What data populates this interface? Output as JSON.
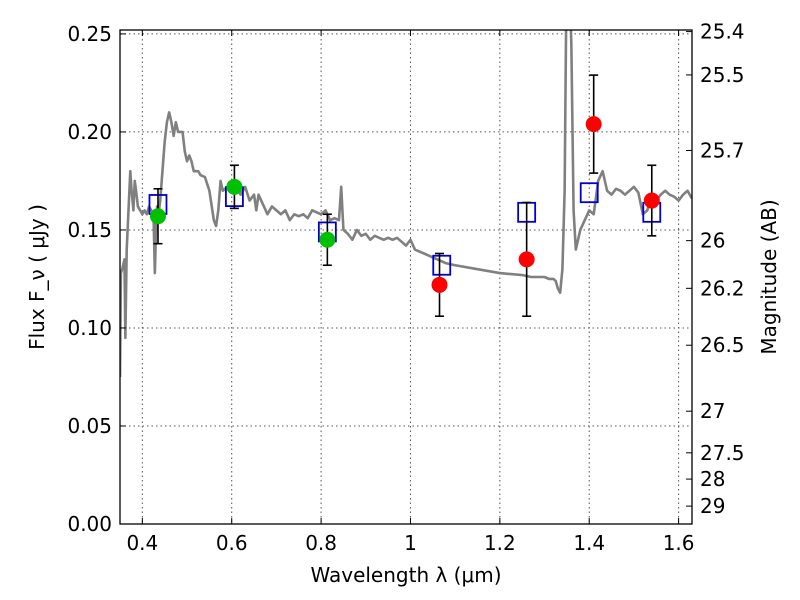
{
  "chart_data": {
    "type": "scatter",
    "title": "",
    "xlabel": "Wavelength λ (μm)",
    "ylabel": "Flux F_ν ( μJy )",
    "ylabel_right": "Magnitude (AB)",
    "xlim": [
      0.35,
      1.63
    ],
    "ylim": [
      0,
      0.252
    ],
    "grid": true,
    "x_ticks": [
      0.4,
      0.6,
      0.8,
      1.0,
      1.2,
      1.4,
      1.6
    ],
    "x_tick_labels": [
      "0.4",
      "0.6",
      "0.8",
      "1",
      "1.2",
      "1.4",
      "1.6"
    ],
    "y_ticks": [
      0.0,
      0.05,
      0.1,
      0.15,
      0.2,
      0.25
    ],
    "y_tick_labels": [
      "0.00",
      "0.05",
      "0.10",
      "0.15",
      "0.20",
      "0.25"
    ],
    "right_ticks": [
      {
        "mag": 25.4,
        "label": "25.4"
      },
      {
        "mag": 25.5,
        "label": "25.5"
      },
      {
        "mag": 25.7,
        "label": "25.7"
      },
      {
        "mag": 26.0,
        "label": "26"
      },
      {
        "mag": 26.2,
        "label": "26.2"
      },
      {
        "mag": 26.5,
        "label": "26.5"
      },
      {
        "mag": 27.0,
        "label": "27"
      },
      {
        "mag": 27.5,
        "label": "27.5"
      },
      {
        "mag": 28.0,
        "label": "28"
      },
      {
        "mag": 29.0,
        "label": "29"
      }
    ],
    "series": [
      {
        "kind": "model_spectrum",
        "style": "line",
        "color": "#808080",
        "x": [
          0.35,
          0.352,
          0.355,
          0.36,
          0.362,
          0.365,
          0.37,
          0.373,
          0.376,
          0.38,
          0.383,
          0.386,
          0.39,
          0.395,
          0.4,
          0.405,
          0.41,
          0.415,
          0.42,
          0.425,
          0.428,
          0.43,
          0.433,
          0.436,
          0.44,
          0.445,
          0.45,
          0.455,
          0.46,
          0.465,
          0.47,
          0.475,
          0.48,
          0.485,
          0.49,
          0.495,
          0.5,
          0.505,
          0.51,
          0.515,
          0.52,
          0.525,
          0.53,
          0.54,
          0.55,
          0.56,
          0.565,
          0.57,
          0.575,
          0.58,
          0.59,
          0.6,
          0.61,
          0.62,
          0.63,
          0.64,
          0.65,
          0.655,
          0.66,
          0.67,
          0.68,
          0.69,
          0.7,
          0.71,
          0.72,
          0.73,
          0.74,
          0.75,
          0.76,
          0.77,
          0.78,
          0.79,
          0.8,
          0.81,
          0.82,
          0.83,
          0.84,
          0.845,
          0.85,
          0.86,
          0.87,
          0.88,
          0.89,
          0.9,
          0.91,
          0.92,
          0.93,
          0.94,
          0.95,
          0.96,
          0.97,
          0.98,
          0.99,
          1.0,
          1.01,
          1.02,
          1.03,
          1.05,
          1.08,
          1.1,
          1.15,
          1.2,
          1.25,
          1.27,
          1.3,
          1.31,
          1.32,
          1.325,
          1.33,
          1.335,
          1.34,
          1.345,
          1.35,
          1.355,
          1.36,
          1.365,
          1.37,
          1.38,
          1.39,
          1.4,
          1.41,
          1.42,
          1.43,
          1.44,
          1.45,
          1.46,
          1.47,
          1.48,
          1.49,
          1.5,
          1.51,
          1.52,
          1.53,
          1.54,
          1.55,
          1.56,
          1.57,
          1.58,
          1.59,
          1.6,
          1.61,
          1.62,
          1.63
        ],
        "y": [
          0.075,
          0.128,
          0.13,
          0.135,
          0.095,
          0.14,
          0.165,
          0.18,
          0.17,
          0.16,
          0.175,
          0.17,
          0.162,
          0.16,
          0.158,
          0.16,
          0.158,
          0.162,
          0.16,
          0.158,
          0.128,
          0.145,
          0.162,
          0.158,
          0.165,
          0.18,
          0.195,
          0.205,
          0.21,
          0.205,
          0.198,
          0.205,
          0.2,
          0.2,
          0.2,
          0.19,
          0.185,
          0.188,
          0.185,
          0.18,
          0.18,
          0.18,
          0.178,
          0.177,
          0.17,
          0.155,
          0.152,
          0.16,
          0.175,
          0.17,
          0.172,
          0.17,
          0.172,
          0.168,
          0.172,
          0.165,
          0.168,
          0.16,
          0.168,
          0.163,
          0.158,
          0.162,
          0.16,
          0.158,
          0.16,
          0.155,
          0.158,
          0.157,
          0.158,
          0.156,
          0.16,
          0.159,
          0.158,
          0.16,
          0.155,
          0.156,
          0.155,
          0.172,
          0.15,
          0.148,
          0.145,
          0.15,
          0.147,
          0.148,
          0.145,
          0.147,
          0.146,
          0.145,
          0.146,
          0.145,
          0.146,
          0.144,
          0.142,
          0.145,
          0.14,
          0.139,
          0.138,
          0.136,
          0.133,
          0.132,
          0.13,
          0.128,
          0.127,
          0.126,
          0.126,
          0.125,
          0.125,
          0.124,
          0.12,
          0.118,
          0.13,
          0.17,
          0.3,
          0.28,
          0.245,
          0.16,
          0.14,
          0.15,
          0.155,
          0.16,
          0.158,
          0.175,
          0.18,
          0.17,
          0.168,
          0.171,
          0.17,
          0.168,
          0.17,
          0.172,
          0.169,
          0.158,
          0.16,
          0.168,
          0.165,
          0.168,
          0.17,
          0.168,
          0.167,
          0.165,
          0.168,
          0.17,
          0.166
        ]
      },
      {
        "kind": "model_photometry",
        "style": "open-square",
        "color": "#0000cc",
        "x": [
          0.435,
          0.606,
          0.814,
          1.07,
          1.26,
          1.4,
          1.54
        ],
        "y": [
          0.163,
          0.167,
          0.149,
          0.132,
          0.159,
          0.169,
          0.159
        ]
      },
      {
        "kind": "observed_optical",
        "style": "filled-circle",
        "color": "#00c000",
        "x": [
          0.435,
          0.606,
          0.814
        ],
        "y": [
          0.157,
          0.172,
          0.145
        ],
        "yerr": [
          0.014,
          0.011,
          0.013
        ]
      },
      {
        "kind": "observed_nir",
        "style": "filled-circle",
        "color": "#ff0000",
        "x": [
          1.065,
          1.26,
          1.41,
          1.54
        ],
        "y": [
          0.122,
          0.135,
          0.204,
          0.165
        ],
        "yerr": [
          0.016,
          0.029,
          0.025,
          0.018
        ]
      }
    ]
  }
}
